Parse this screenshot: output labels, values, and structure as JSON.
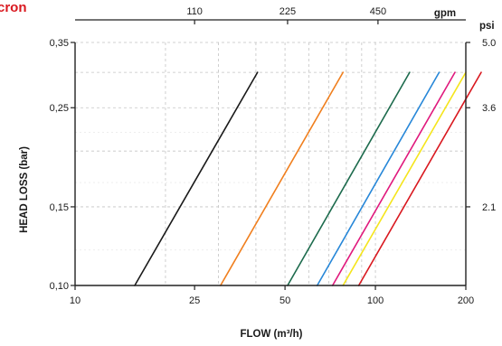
{
  "heading": "cron",
  "chart_data": {
    "type": "line",
    "xlabel": "FLOW (m³/h)",
    "ylabel": "HEAD LOSS (bar)",
    "x_scale": "log",
    "y_scale": "log",
    "xlim": [
      10,
      200
    ],
    "ylim": [
      0.1,
      0.35
    ],
    "x_ticks": [
      10,
      25,
      50,
      100,
      200
    ],
    "y_ticks": [
      0.1,
      0.15,
      0.25,
      0.35
    ],
    "y_tick_labels": [
      "0,10",
      "0,15",
      "0,25",
      "0,35"
    ],
    "top_axis": {
      "unit": "gpm",
      "ticks": [
        {
          "label": "110",
          "at_flow": 25
        },
        {
          "label": "225",
          "at_flow": 51
        },
        {
          "label": "450",
          "at_flow": 102
        }
      ]
    },
    "right_axis": {
      "unit": "psi",
      "ticks": [
        {
          "label": "5.0",
          "at_head": 0.35
        },
        {
          "label": "3.6",
          "at_head": 0.25
        },
        {
          "label": "2.1",
          "at_head": 0.15
        }
      ]
    },
    "grid": true,
    "series": [
      {
        "color": "#1a1a1a",
        "points": [
          [
            15.8,
            0.1
          ],
          [
            40.5,
            0.3
          ]
        ]
      },
      {
        "color": "#f07f1e",
        "points": [
          [
            30.5,
            0.1
          ],
          [
            78,
            0.3
          ]
        ]
      },
      {
        "color": "#1d6b4d",
        "points": [
          [
            51,
            0.1
          ],
          [
            130,
            0.3
          ]
        ]
      },
      {
        "color": "#2787d8",
        "points": [
          [
            64,
            0.1
          ],
          [
            163,
            0.3
          ]
        ]
      },
      {
        "color": "#e0197d",
        "points": [
          [
            72,
            0.1
          ],
          [
            184,
            0.3
          ]
        ]
      },
      {
        "color": "#f5e51c",
        "points": [
          [
            78,
            0.1
          ],
          [
            200,
            0.3
          ]
        ]
      },
      {
        "color": "#d9181f",
        "points": [
          [
            88,
            0.1
          ],
          [
            225,
            0.3
          ]
        ]
      }
    ]
  }
}
